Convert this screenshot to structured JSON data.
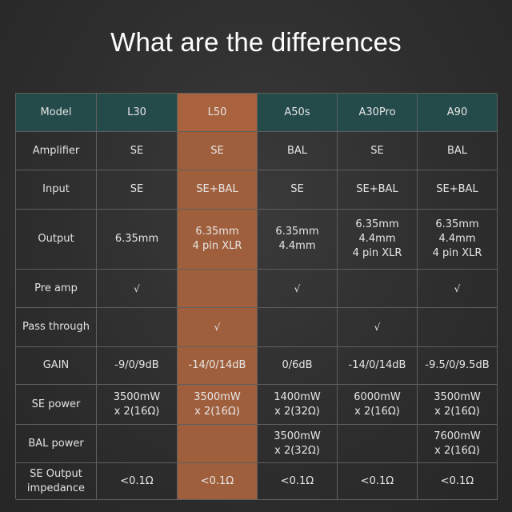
{
  "title": "What are the differences",
  "columns": [
    "Model",
    "L30",
    "L50",
    "A50s",
    "A30Pro",
    "A90"
  ],
  "rows": [
    {
      "label": "Amplifier",
      "values": [
        "SE",
        "SE",
        "BAL",
        "SE",
        "BAL"
      ]
    },
    {
      "label": "Input",
      "values": [
        "SE",
        "SE+BAL",
        "SE",
        "SE+BAL",
        "SE+BAL"
      ]
    },
    {
      "label": "Output",
      "values": [
        "6.35mm",
        "6.35mm\n4 pin XLR",
        "6.35mm\n4.4mm",
        "6.35mm\n4.4mm\n4 pin XLR",
        "6.35mm\n4.4mm\n4 pin XLR"
      ]
    },
    {
      "label": "Pre amp",
      "values": [
        "√",
        "",
        "√",
        "",
        "√"
      ]
    },
    {
      "label": "Pass through",
      "values": [
        "",
        "√",
        "",
        "√",
        ""
      ]
    },
    {
      "label": "GAIN",
      "values": [
        "-9/0/9dB",
        "-14/0/14dB",
        "0/6dB",
        "-14/0/14dB",
        "-9.5/0/9.5dB"
      ]
    },
    {
      "label": "SE power",
      "values": [
        "3500mW\nx 2(16Ω)",
        "3500mW\nx 2(16Ω)",
        "1400mW\nx 2(32Ω)",
        "6000mW\nx 2(16Ω)",
        "3500mW\nx 2(16Ω)"
      ]
    },
    {
      "label": "BAL power",
      "values": [
        "",
        "",
        "3500mW\nx 2(32Ω)",
        "",
        "7600mW\nx 2(16Ω)"
      ]
    },
    {
      "label": "SE Output\nimpedance",
      "values": [
        "<0.1Ω",
        "<0.1Ω",
        "<0.1Ω",
        "<0.1Ω",
        "<0.1Ω"
      ]
    }
  ],
  "colors": {
    "header_bg": "#244a4a",
    "highlight_column": "#a05f3c",
    "background": "#2e2e2e",
    "grid_line": "#5f5f5f"
  }
}
